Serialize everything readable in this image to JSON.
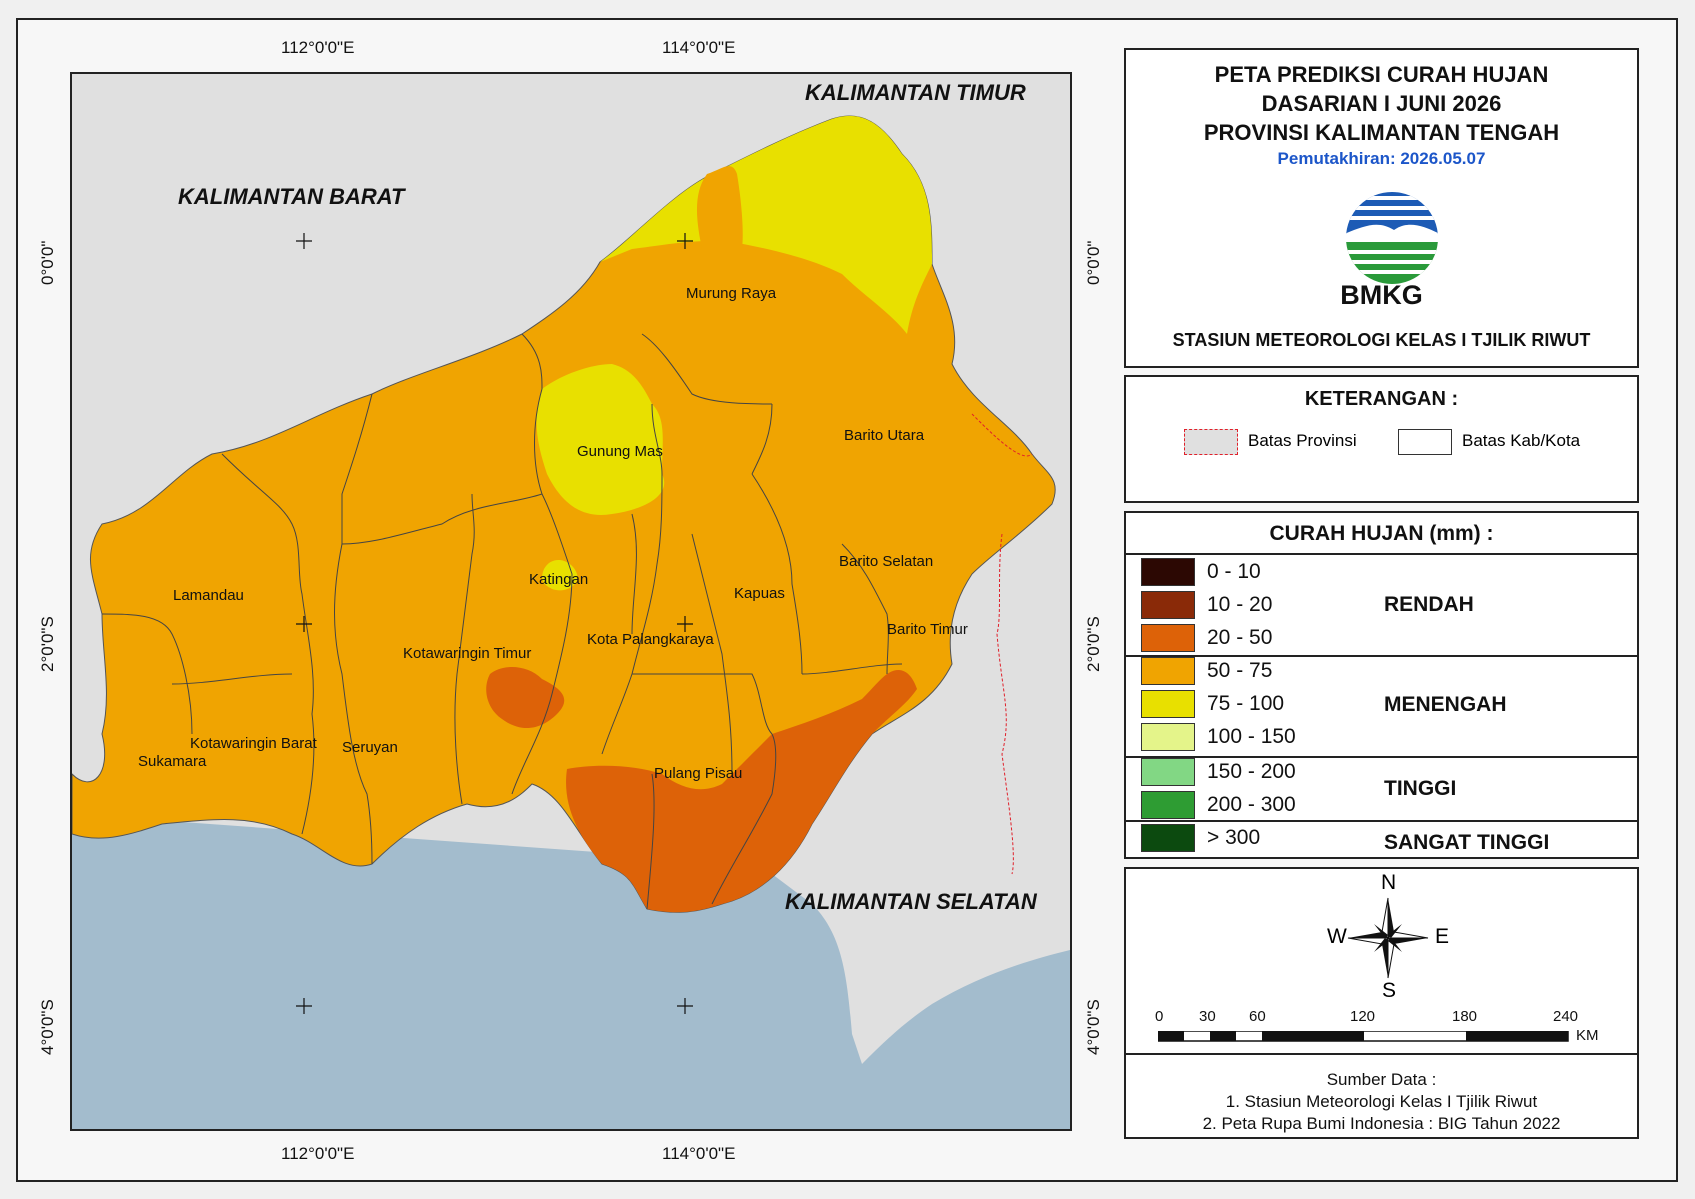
{
  "title": {
    "line1": "PETA PREDIKSI CURAH HUJAN",
    "line2": "DASARIAN I JUNI 2026",
    "line3": "PROVINSI KALIMANTAN TENGAH",
    "updated": "Pemutakhiran: 2026.05.07"
  },
  "logo": {
    "text": "BMKG",
    "icon": "bmkg-logo"
  },
  "station": "STASIUN METEOROLOGI KELAS I TJILIK RIWUT",
  "keterangan": {
    "title": "KETERANGAN :",
    "province_border": "Batas Provinsi",
    "regency_border": "Batas Kab/Kota"
  },
  "legend": {
    "title": "CURAH HUJAN (mm) :",
    "items": [
      {
        "label": "0 - 10",
        "color": "#2c0803"
      },
      {
        "label": "10 - 20",
        "color": "#8a2a08"
      },
      {
        "label": "20 - 50",
        "color": "#dd6208"
      },
      {
        "label": "50 - 75",
        "color": "#f0a401"
      },
      {
        "label": "75 - 100",
        "color": "#e8e000"
      },
      {
        "label": "100 - 150",
        "color": "#e4f48a"
      },
      {
        "label": "150 - 200",
        "color": "#82d784"
      },
      {
        "label": "200 - 300",
        "color": "#2e9c33"
      },
      {
        "label": "> 300",
        "color": "#0c4a0f"
      }
    ],
    "classes": [
      "RENDAH",
      "MENENGAH",
      "TINGGI",
      "SANGAT TINGGI"
    ]
  },
  "compass": {
    "n": "N",
    "s": "S",
    "e": "E",
    "w": "W"
  },
  "scale": {
    "ticks": [
      "0",
      "30",
      "60",
      "120",
      "180",
      "240"
    ],
    "unit": "KM"
  },
  "source": {
    "title": "Sumber Data :",
    "line1": "1. Stasiun Meteorologi Kelas I Tjilik Riwut",
    "line2": "2. Peta Rupa Bumi Indonesia : BIG Tahun 2022"
  },
  "coords": {
    "lon_112": "112°0'0\"E",
    "lon_114": "114°0'0\"E",
    "lat_0": "0°0'0\"",
    "lat_2": "2°0'0\"S",
    "lat_4": "4°0'0\"S"
  },
  "neighbors": {
    "kaltim": "KALIMANTAN TIMUR",
    "kalbar": "KALIMANTAN BARAT",
    "kalsel": "KALIMANTAN SELATAN"
  },
  "regencies": {
    "murung_raya": "Murung Raya",
    "gunung_mas": "Gunung Mas",
    "barito_utara": "Barito Utara",
    "katingan": "Katingan",
    "kapuas": "Kapuas",
    "barito_selatan": "Barito Selatan",
    "barito_timur": "Barito Timur",
    "lamandau": "Lamandau",
    "kotim": "Kotawaringin Timur",
    "palangkaraya": "Kota Palangkaraya",
    "kobar": "Kotawaringin Barat",
    "seruyan": "Seruyan",
    "sukamara": "Sukamara",
    "pulang_pisau": "Pulang Pisau"
  },
  "colors": {
    "sea": "#a3bccd",
    "neighbor_land": "#e0e0e0",
    "province_border": "#e0202a"
  }
}
